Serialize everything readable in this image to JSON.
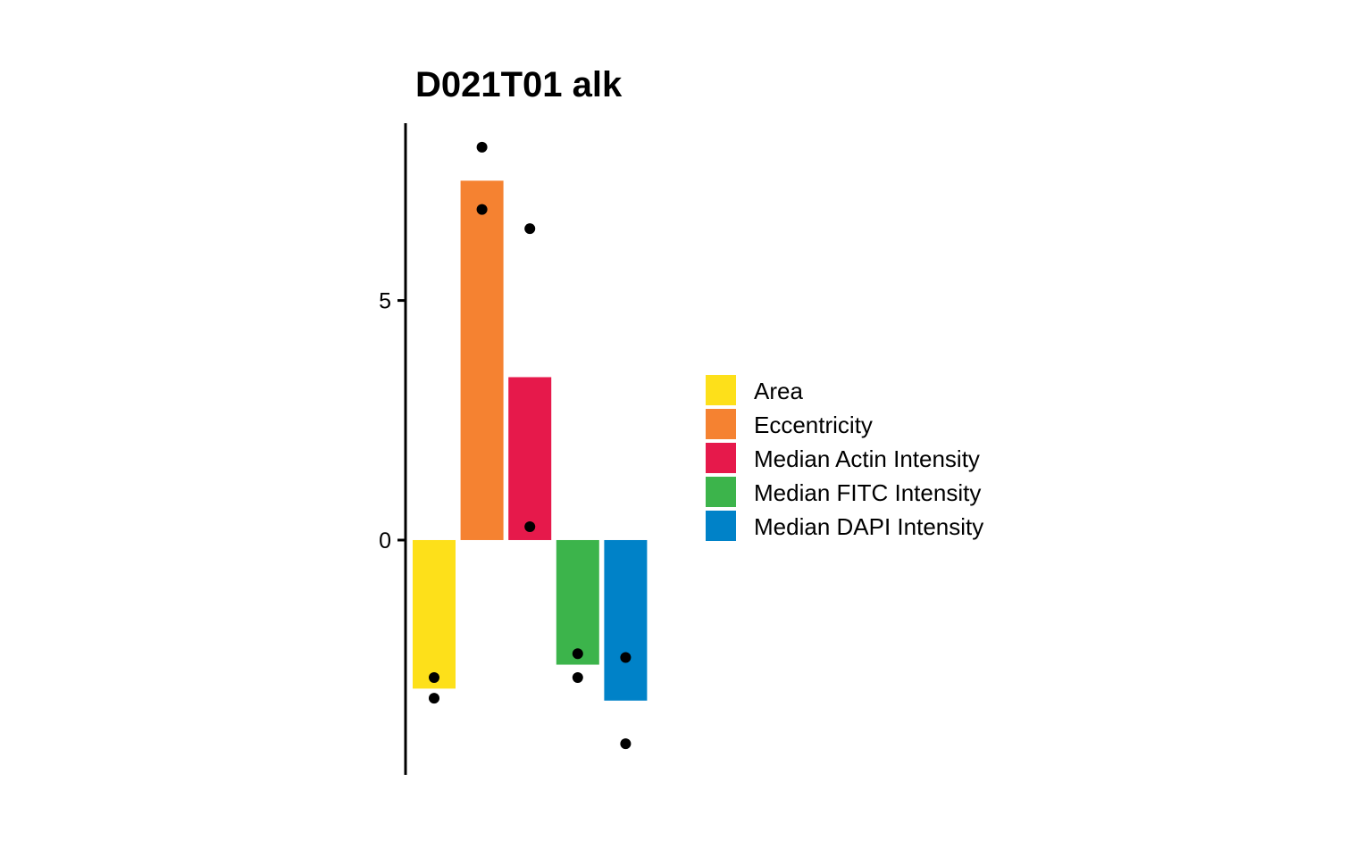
{
  "chart_data": {
    "type": "bar",
    "title": "D021T01 alk",
    "xlabel": "",
    "ylabel": "",
    "categories": [
      "Area",
      "Eccentricity",
      "Median Actin Intensity",
      "Median FITC Intensity",
      "Median DAPI Intensity"
    ],
    "values": [
      -3.1,
      7.5,
      3.4,
      -2.6,
      -3.35
    ],
    "points": [
      {
        "category": "Area",
        "y": [
          -2.87,
          -3.3
        ]
      },
      {
        "category": "Eccentricity",
        "y": [
          8.2,
          6.9
        ]
      },
      {
        "category": "Median Actin Intensity",
        "y": [
          6.5,
          0.28
        ]
      },
      {
        "category": "Median FITC Intensity",
        "y": [
          -2.37,
          -2.87
        ]
      },
      {
        "category": "Median DAPI Intensity",
        "y": [
          -2.45,
          -4.25
        ]
      }
    ],
    "colors": [
      "#FDE01A",
      "#F58231",
      "#E6194B",
      "#3CB44B",
      "#0082C8"
    ],
    "ylim": [
      -4.9,
      8.7
    ],
    "yticks": [
      {
        "value": 0,
        "label": "0"
      },
      {
        "value": 5,
        "label": "5"
      }
    ],
    "grid": false,
    "legend": "right"
  }
}
